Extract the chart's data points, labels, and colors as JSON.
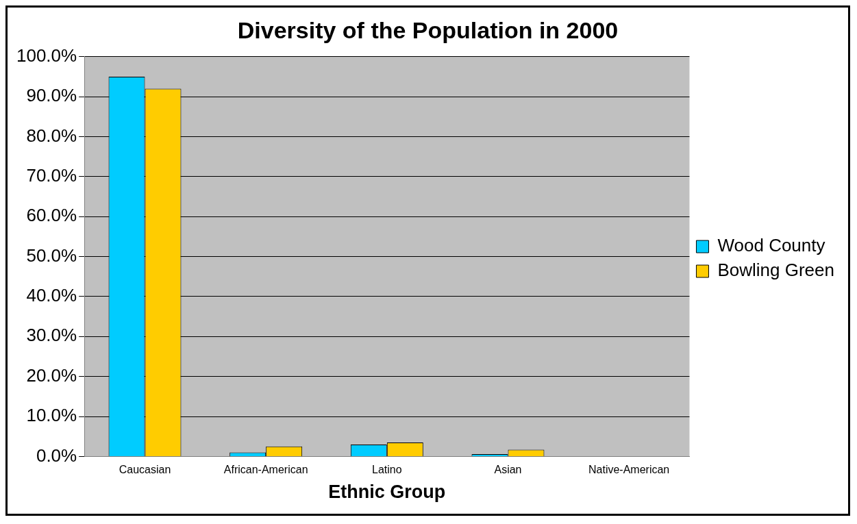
{
  "chart_data": {
    "type": "bar",
    "title": "Diversity of the Population in 2000",
    "xlabel": "Ethnic Group",
    "categories": [
      "Caucasian",
      "African-American",
      "Latino",
      "Asian",
      "Native-American"
    ],
    "series": [
      {
        "name": "Wood County",
        "color": "#00ccff",
        "values": [
          95,
          1,
          3,
          0.6,
          null
        ]
      },
      {
        "name": "Bowling Green",
        "color": "#ffcc00",
        "values": [
          92,
          2.5,
          3.5,
          1.7,
          null
        ]
      }
    ],
    "ylim": [
      0,
      100
    ],
    "yticks": [
      {
        "value": 0,
        "label": "0.0%"
      },
      {
        "value": 10,
        "label": "10.0%"
      },
      {
        "value": 20,
        "label": "20.0%"
      },
      {
        "value": 30,
        "label": "30.0%"
      },
      {
        "value": 40,
        "label": "40.0%"
      },
      {
        "value": 50,
        "label": "50.0%"
      },
      {
        "value": 60,
        "label": "60.0%"
      },
      {
        "value": 70,
        "label": "70.0%"
      },
      {
        "value": 80,
        "label": "80.0%"
      },
      {
        "value": 90,
        "label": "90.0%"
      },
      {
        "value": 100,
        "label": "100.0%"
      }
    ],
    "grid": "y",
    "legend": "right"
  }
}
